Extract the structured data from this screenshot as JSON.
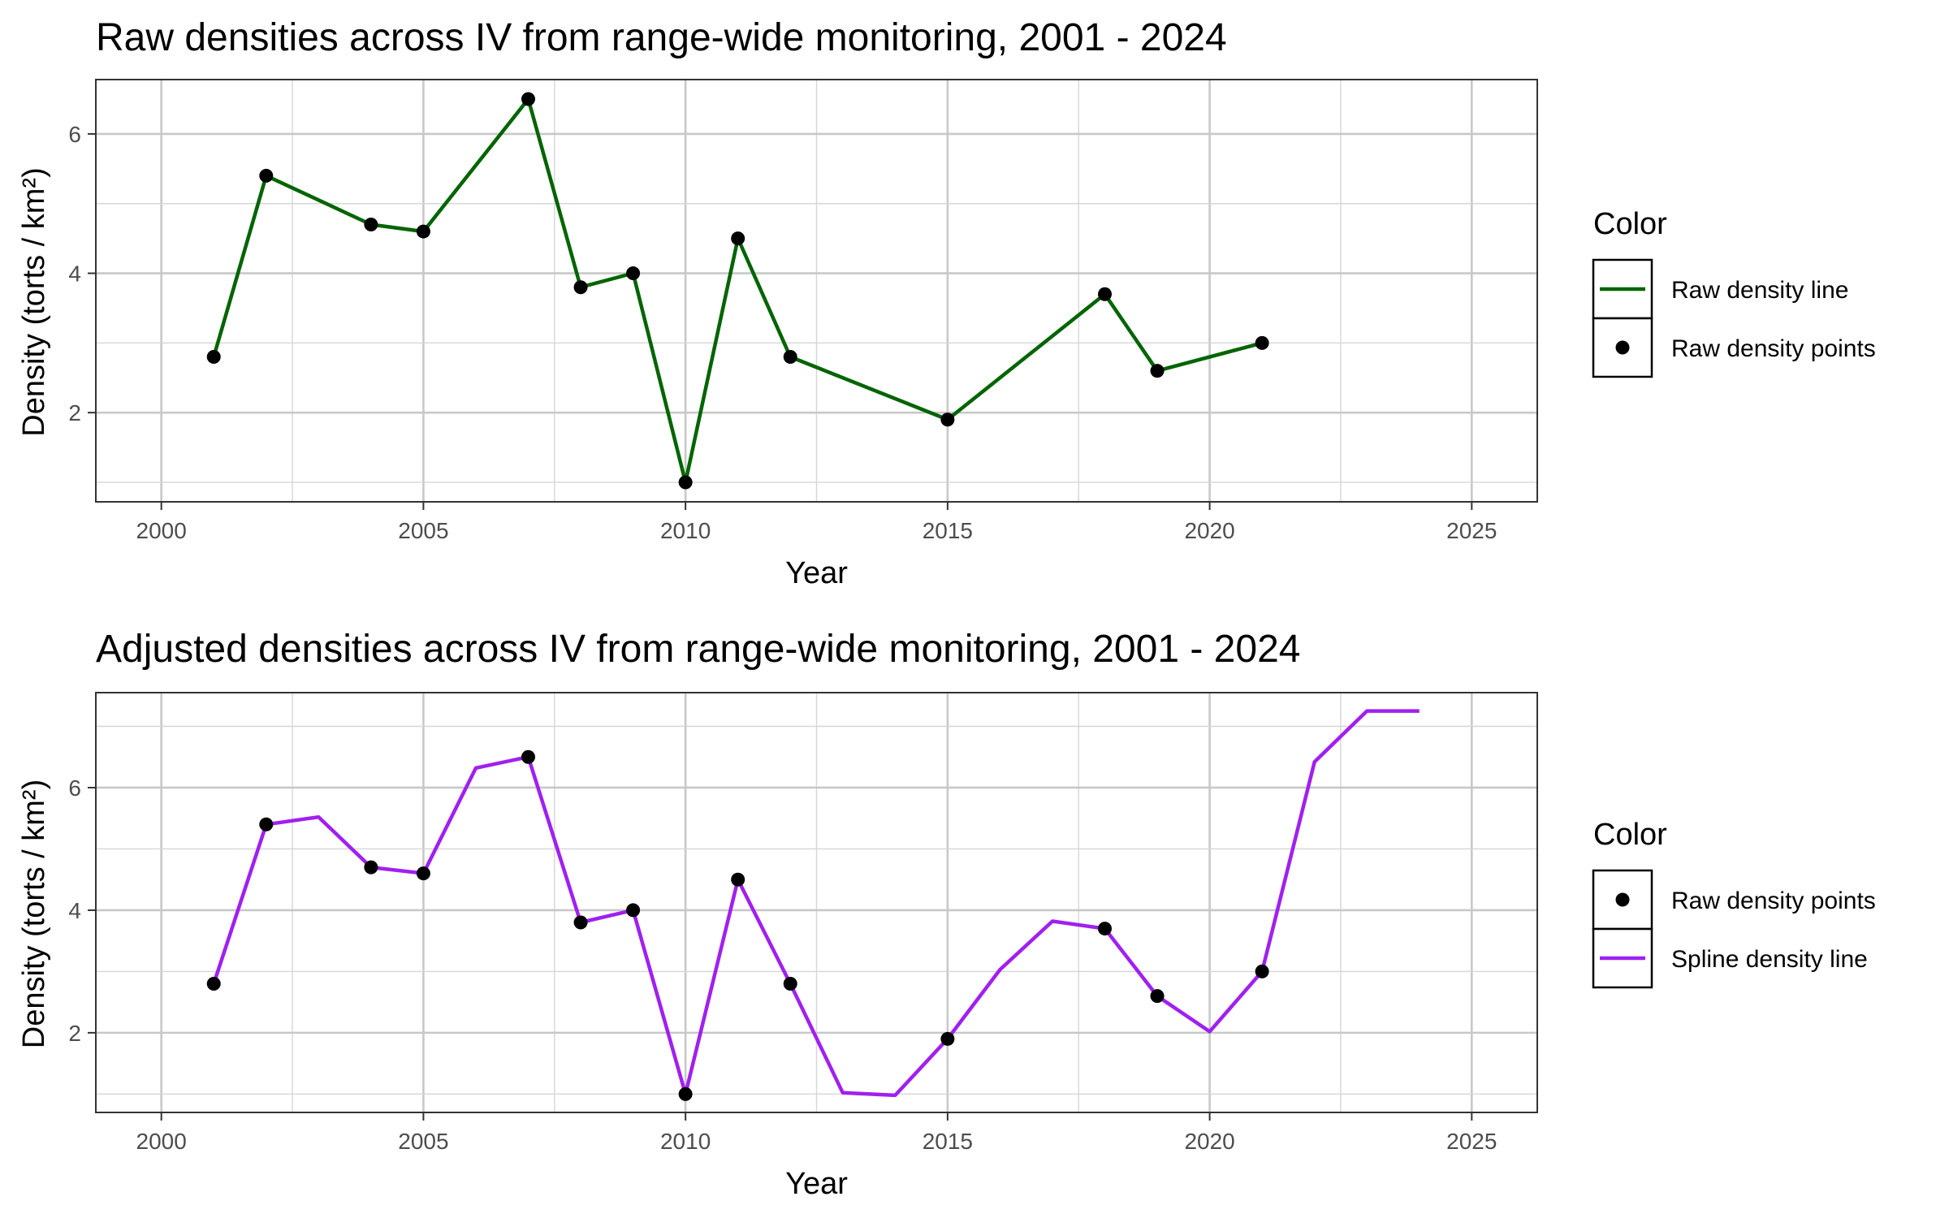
{
  "chart_data": [
    {
      "type": "line",
      "title": "Raw densities across IV from range-wide monitoring, 2001 - 2024",
      "xlabel": "Year",
      "ylabel": "Density (torts / km²)",
      "xlim": [
        1998.75,
        2026.25
      ],
      "ylim": [
        0.72,
        6.78
      ],
      "xticks": [
        2000,
        2005,
        2010,
        2015,
        2020,
        2025
      ],
      "yticks": [
        2,
        4,
        6
      ],
      "grid": true,
      "legend": {
        "title": "Color",
        "position": "right",
        "entries": [
          {
            "label": "Raw density line",
            "kind": "line",
            "color": "#006400"
          },
          {
            "label": "Raw density points",
            "kind": "point",
            "color": "#000000"
          }
        ]
      },
      "series": [
        {
          "name": "Raw density line",
          "kind": "line",
          "color": "#006400",
          "x": [
            2001,
            2002,
            2004,
            2005,
            2007,
            2008,
            2009,
            2010,
            2011,
            2012,
            2015,
            2018,
            2019,
            2021
          ],
          "y": [
            2.8,
            5.4,
            4.7,
            4.6,
            6.5,
            3.8,
            4.0,
            1.0,
            4.5,
            2.8,
            1.9,
            3.7,
            2.6,
            3.0
          ]
        },
        {
          "name": "Raw density points",
          "kind": "point",
          "color": "#000000",
          "x": [
            2001,
            2002,
            2004,
            2005,
            2007,
            2008,
            2009,
            2010,
            2011,
            2012,
            2015,
            2018,
            2019,
            2021
          ],
          "y": [
            2.8,
            5.4,
            4.7,
            4.6,
            6.5,
            3.8,
            4.0,
            1.0,
            4.5,
            2.8,
            1.9,
            3.7,
            2.6,
            3.0
          ]
        }
      ]
    },
    {
      "type": "line",
      "title": "Adjusted densities across IV from range-wide monitoring, 2001 - 2024",
      "xlabel": "Year",
      "ylabel": "Density (torts / km²)",
      "xlim": [
        1998.75,
        2026.25
      ],
      "ylim": [
        0.7,
        7.55
      ],
      "xticks": [
        2000,
        2005,
        2010,
        2015,
        2020,
        2025
      ],
      "yticks": [
        2,
        4,
        6
      ],
      "grid": true,
      "legend": {
        "title": "Color",
        "position": "right",
        "entries": [
          {
            "label": "Raw density points",
            "kind": "point",
            "color": "#000000"
          },
          {
            "label": "Spline density line",
            "kind": "line",
            "color": "#a020f0"
          }
        ]
      },
      "series": [
        {
          "name": "Spline density line",
          "kind": "line",
          "color": "#a020f0",
          "x": [
            2001,
            2002,
            2003,
            2004,
            2005,
            2006,
            2007,
            2008,
            2009,
            2010,
            2011,
            2012,
            2013,
            2014,
            2015,
            2016,
            2017,
            2018,
            2019,
            2020,
            2021,
            2022,
            2023,
            2024
          ],
          "y": [
            2.8,
            5.4,
            5.52,
            4.7,
            4.6,
            6.32,
            6.5,
            3.8,
            4.0,
            1.0,
            4.5,
            2.8,
            1.02,
            0.98,
            1.9,
            3.03,
            3.82,
            3.7,
            2.6,
            2.02,
            3.0,
            6.42,
            7.25,
            7.25
          ]
        },
        {
          "name": "Raw density points",
          "kind": "point",
          "color": "#000000",
          "x": [
            2001,
            2002,
            2004,
            2005,
            2007,
            2008,
            2009,
            2010,
            2011,
            2012,
            2015,
            2018,
            2019,
            2021
          ],
          "y": [
            2.8,
            5.4,
            4.7,
            4.6,
            6.5,
            3.8,
            4.0,
            1.0,
            4.5,
            2.8,
            1.9,
            3.7,
            2.6,
            3.0
          ]
        }
      ]
    }
  ]
}
